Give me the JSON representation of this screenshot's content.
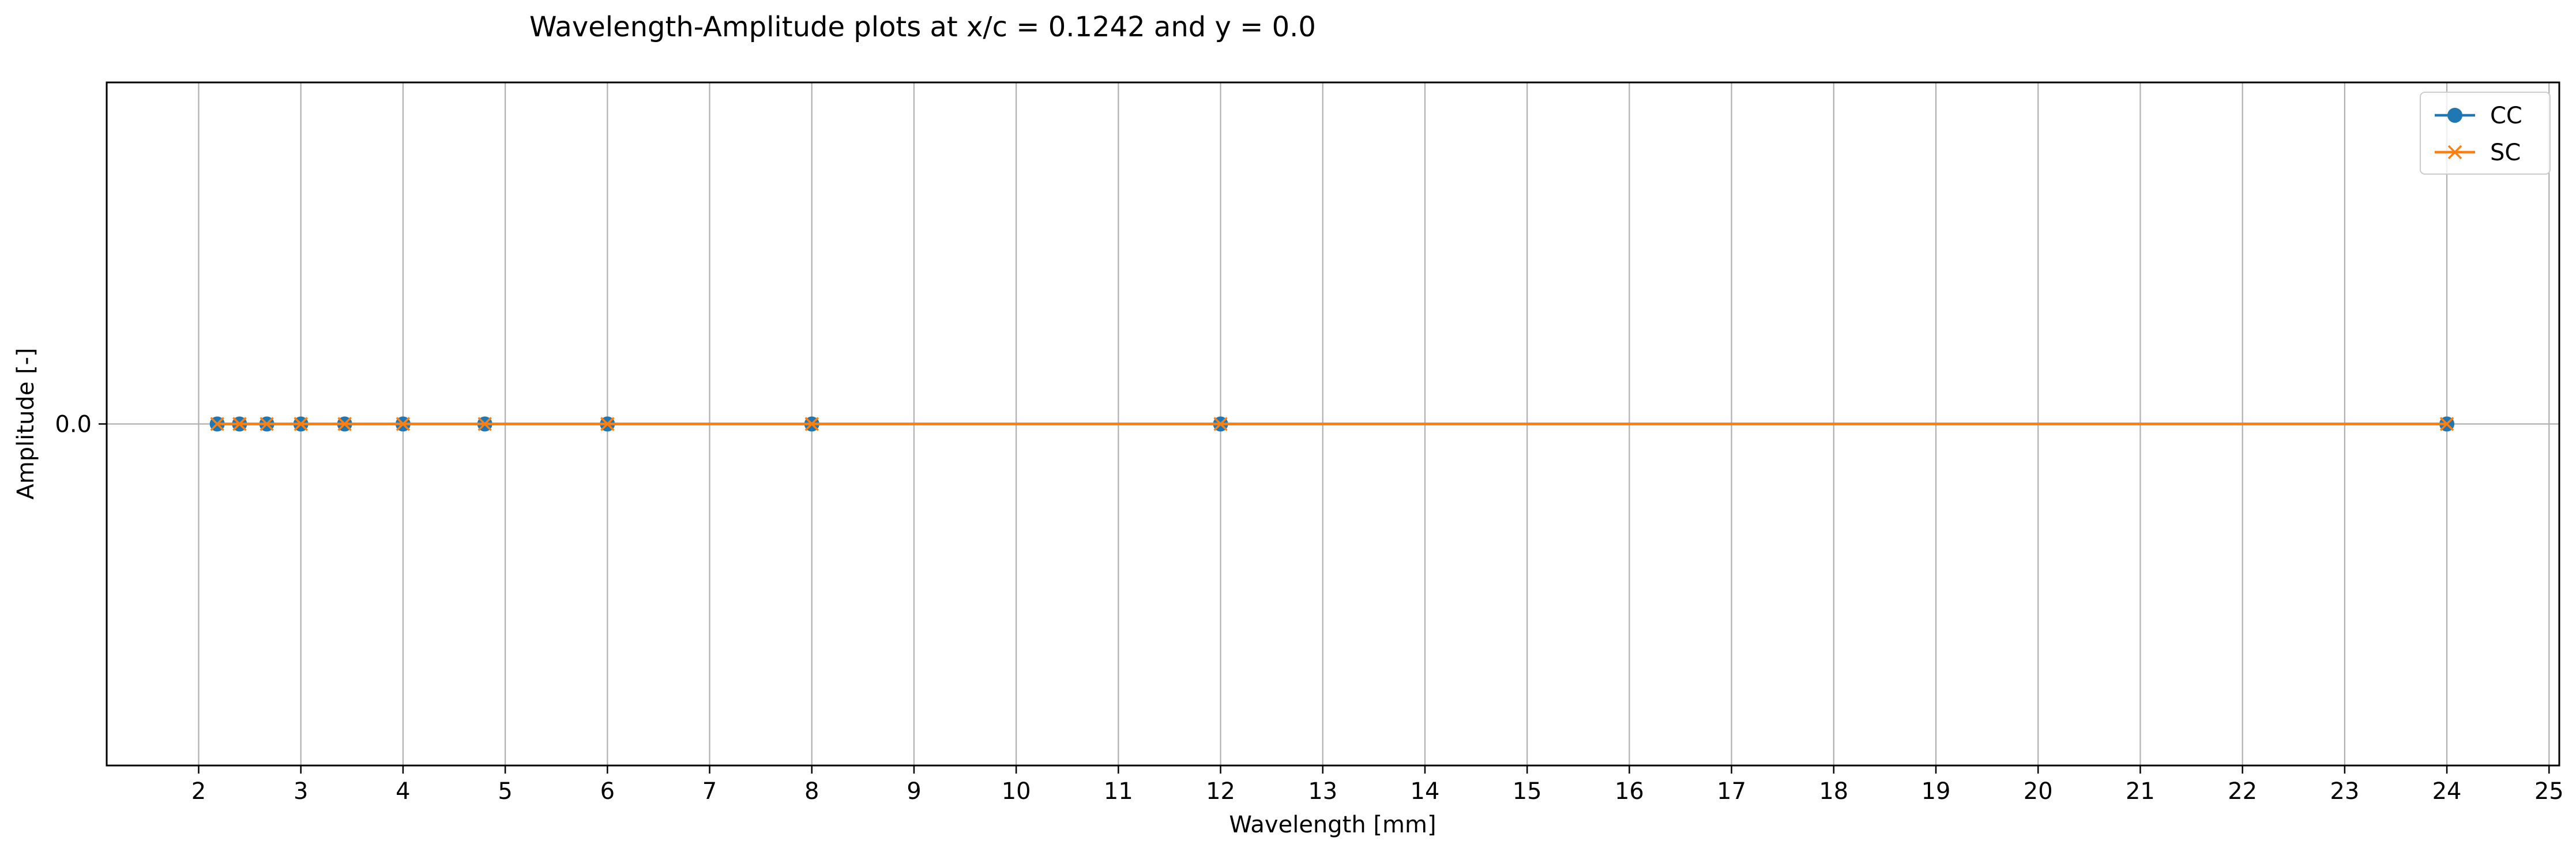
{
  "chart_data": {
    "type": "line",
    "title": "Wavelength-Amplitude plots at x/c = 0.1242 and y = 0.0",
    "xlabel": "Wavelength [mm]",
    "ylabel": "Amplitude [-]",
    "xlim": [
      1.1,
      25.1
    ],
    "ylim": [
      -0.06,
      0.06
    ],
    "x_ticks": [
      2,
      3,
      4,
      5,
      6,
      7,
      8,
      9,
      10,
      11,
      12,
      13,
      14,
      15,
      16,
      17,
      18,
      19,
      20,
      21,
      22,
      23,
      24,
      25
    ],
    "y_ticks": [
      0.0
    ],
    "y_tick_labels": [
      "0.0"
    ],
    "grid": true,
    "legend_position": "top-right",
    "series": [
      {
        "name": "CC",
        "color": "#1f77b4",
        "marker": "circle",
        "x": [
          24,
          12,
          8,
          6,
          4.8,
          4,
          3.4286,
          3,
          2.6667,
          2.4,
          2.1818
        ],
        "y": [
          0,
          0,
          0,
          0,
          0,
          0,
          0,
          0,
          0,
          0,
          0
        ]
      },
      {
        "name": "SC",
        "color": "#ff7f0e",
        "marker": "x",
        "x": [
          24,
          12,
          8,
          6,
          4.8,
          4,
          3.4286,
          3,
          2.6667,
          2.4,
          2.1818
        ],
        "y": [
          0,
          0,
          0,
          0,
          0,
          0,
          0,
          0,
          0,
          0,
          0
        ]
      }
    ]
  }
}
